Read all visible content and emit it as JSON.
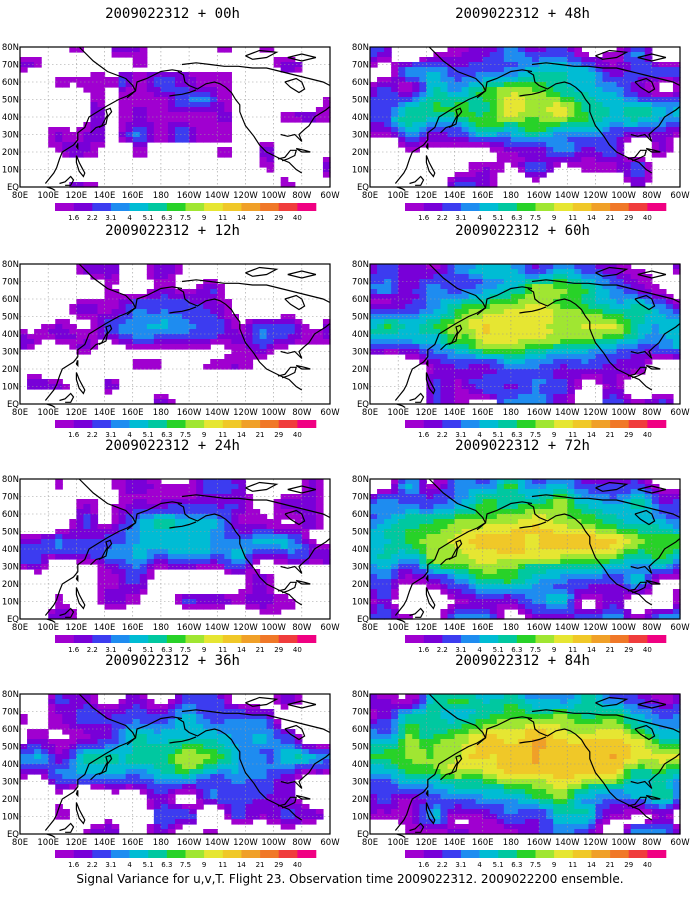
{
  "footer": "Signal Variance for u,v,T. Flight 23. Observation time 2009022312. 2009022200 ensemble.",
  "colors": [
    "#a000d0",
    "#7800d8",
    "#3c3cf0",
    "#1e8cf0",
    "#00bcd4",
    "#00c8a0",
    "#28d228",
    "#a0e632",
    "#e6e632",
    "#f0c828",
    "#f0a028",
    "#f07828",
    "#f03c3c",
    "#f00082"
  ],
  "chart_data": {
    "type": "heatmap",
    "colorbar_labels": [
      "1.6",
      "2.2",
      "3.1",
      "4",
      "5.1",
      "6.3",
      "7.5",
      "9",
      "11",
      "14",
      "21",
      "29",
      "40"
    ],
    "lon_labels": [
      "80E",
      "100E",
      "120E",
      "140E",
      "160E",
      "180",
      "160W",
      "140W",
      "120W",
      "100W",
      "80W",
      "60W"
    ],
    "lat_labels": [
      "80N",
      "70N",
      "60N",
      "50N",
      "40N",
      "30N",
      "20N",
      "10N",
      "EQ"
    ],
    "panels": [
      {
        "title": "2009022312 + 00h",
        "lead": 0
      },
      {
        "title": "2009022312 + 12h",
        "lead": 12
      },
      {
        "title": "2009022312 + 24h",
        "lead": 24
      },
      {
        "title": "2009022312 + 36h",
        "lead": 36
      },
      {
        "title": "2009022312 + 48h",
        "lead": 48
      },
      {
        "title": "2009022312 + 60h",
        "lead": 60
      },
      {
        "title": "2009022312 + 72h",
        "lead": 72
      },
      {
        "title": "2009022312 + 84h",
        "lead": 84
      }
    ]
  }
}
